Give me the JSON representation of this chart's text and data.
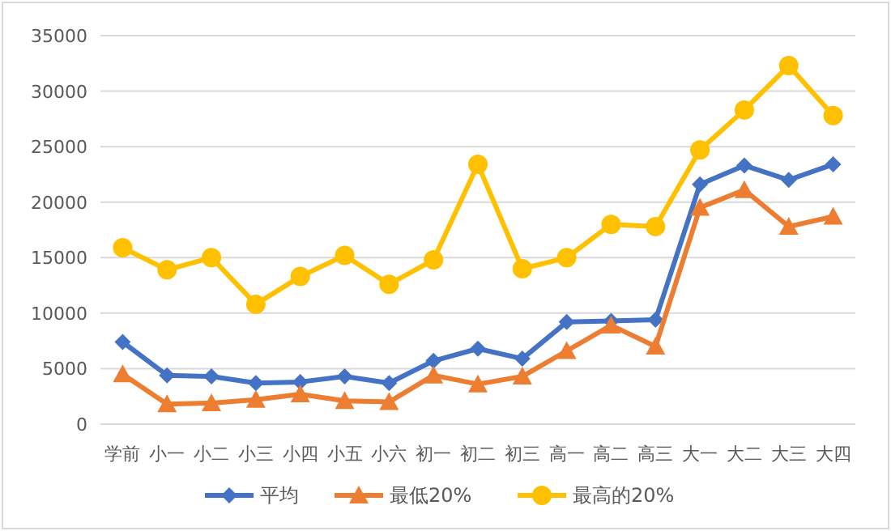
{
  "chart_data": {
    "type": "line",
    "categories": [
      "学前",
      "小一",
      "小二",
      "小三",
      "小四",
      "小五",
      "小六",
      "初一",
      "初二",
      "初三",
      "高一",
      "高二",
      "高三",
      "大一",
      "大二",
      "大三",
      "大四"
    ],
    "series": [
      {
        "name": "平均",
        "color": "#4472c4",
        "marker": "diamond",
        "values": [
          7400,
          4400,
          4300,
          3700,
          3800,
          4300,
          3700,
          5700,
          6800,
          5900,
          9200,
          9300,
          9400,
          21600,
          23300,
          22000,
          23400
        ]
      },
      {
        "name": "最低20%",
        "color": "#ed7d31",
        "marker": "triangle",
        "values": [
          4500,
          1800,
          1900,
          2200,
          2700,
          2100,
          2000,
          4400,
          3600,
          4300,
          6600,
          8900,
          7000,
          19500,
          21100,
          17800,
          18700
        ]
      },
      {
        "name": "最高的20%",
        "color": "#ffc000",
        "marker": "circle",
        "values": [
          15900,
          13900,
          15000,
          10800,
          13300,
          15200,
          12600,
          14800,
          23400,
          14000,
          15000,
          18000,
          17800,
          24700,
          28300,
          32300,
          27800
        ]
      }
    ],
    "ylim": [
      0,
      35000
    ],
    "yticks": [
      0,
      5000,
      10000,
      15000,
      20000,
      25000,
      30000,
      35000
    ],
    "grid": "y",
    "legend": "bottom",
    "line_style": "solid"
  }
}
